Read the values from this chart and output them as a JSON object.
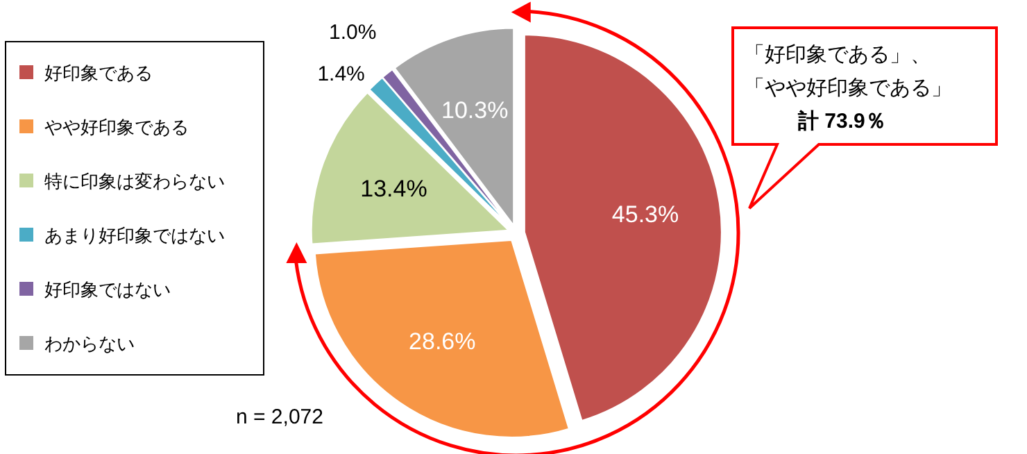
{
  "chart_data": {
    "type": "pie",
    "categories": [
      "好印象である",
      "やや好印象である",
      "特に印象は変わらない",
      "あまり好印象ではない",
      "好印象ではない",
      "わからない"
    ],
    "values": [
      45.3,
      28.6,
      13.4,
      1.4,
      1.0,
      10.3
    ],
    "colors": [
      "#c0504d",
      "#f79646",
      "#c3d69b",
      "#4bacc6",
      "#8064a2",
      "#a6a6a6"
    ],
    "value_labels": [
      "45.3%",
      "28.6%",
      "13.4%",
      "1.4%",
      "1.0%",
      "10.3%"
    ],
    "legend": "left",
    "annotations": [
      "「好印象である」、",
      "「やや好印象である」",
      "計 73.9％",
      "n = 2,072"
    ]
  }
}
